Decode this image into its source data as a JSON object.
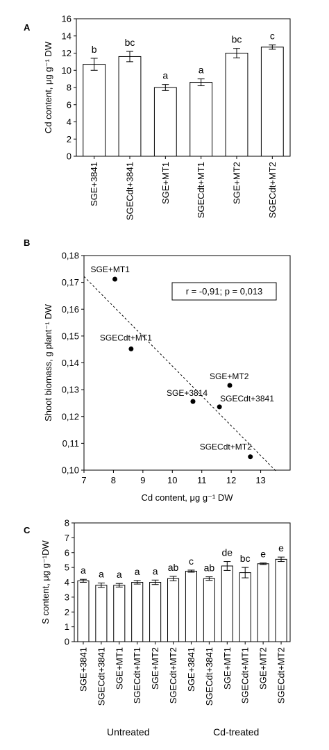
{
  "chart_data": [
    {
      "panel_label": "A",
      "type": "bar",
      "ylabel": "Cd content, μg g⁻¹ DW",
      "ylim": [
        0,
        16
      ],
      "yticks": [
        0,
        2,
        4,
        6,
        8,
        10,
        12,
        14,
        16
      ],
      "categories": [
        "SGE+3841",
        "SGECdt+3841",
        "SGE+MT1",
        "SGECdt+MT1",
        "SGE+MT2",
        "SGECdt+MT2"
      ],
      "values": [
        10.7,
        11.6,
        8.0,
        8.6,
        12.0,
        12.7
      ],
      "errors": [
        0.7,
        0.6,
        0.35,
        0.4,
        0.55,
        0.25
      ],
      "letters": [
        "b",
        "bc",
        "a",
        "a",
        "bc",
        "c"
      ],
      "grid": false
    },
    {
      "panel_label": "B",
      "type": "scatter",
      "xlabel": "Cd content, μg g⁻¹ DW",
      "ylabel": "Shoot biomass, g plant⁻¹ DW",
      "xlim": [
        7,
        14
      ],
      "ylim": [
        0.1,
        0.18
      ],
      "xticks": [
        7,
        8,
        9,
        10,
        11,
        12,
        13
      ],
      "yticks": [
        "0,10",
        "0,11",
        "0,12",
        "0,13",
        "0,14",
        "0,15",
        "0,16",
        "0,17",
        "0,18"
      ],
      "points": [
        {
          "label": "SGE+MT1",
          "x": 8.05,
          "y": 0.1712
        },
        {
          "label": "SGECdt+MT1",
          "x": 8.6,
          "y": 0.1452
        },
        {
          "label": "SGE+3814",
          "x": 10.7,
          "y": 0.1256
        },
        {
          "label": "SGE+MT2",
          "x": 11.95,
          "y": 0.1316
        },
        {
          "label": "SGECdt+3841",
          "x": 11.6,
          "y": 0.1236
        },
        {
          "label": "SGECdt+MT2",
          "x": 12.65,
          "y": 0.105
        }
      ],
      "trendline": {
        "x1": 7,
        "y1": 0.1722,
        "x2": 13.55,
        "y2": 0.0993
      },
      "annotation": "r = -0,91; p = 0,013",
      "grid": false
    },
    {
      "panel_label": "C",
      "type": "bar",
      "ylabel": "S content, μg g⁻¹DW",
      "ylim": [
        0,
        8
      ],
      "yticks": [
        0,
        1,
        2,
        3,
        4,
        5,
        6,
        7,
        8
      ],
      "categories": [
        "SGE+3841",
        "SGECdt+3841",
        "SGE+MT1",
        "SGECdt+MT1",
        "SGE+MT2",
        "SGECdt+MT2",
        "SGE+3841",
        "SGECdt+3841",
        "SGE+MT1",
        "SGECdt+MT1",
        "SGE+MT2",
        "SGECdt+MT2"
      ],
      "values": [
        4.1,
        3.8,
        3.8,
        4.0,
        4.0,
        4.25,
        4.75,
        4.25,
        5.1,
        4.65,
        5.25,
        5.55
      ],
      "errors": [
        0.1,
        0.15,
        0.12,
        0.12,
        0.15,
        0.15,
        0.07,
        0.12,
        0.3,
        0.35,
        0.05,
        0.15
      ],
      "letters": [
        "a",
        "a",
        "a",
        "a",
        "a",
        "ab",
        "c",
        "ab",
        "de",
        "bc",
        "e",
        "e"
      ],
      "groups": [
        {
          "label": "Untreated",
          "start": 0,
          "end": 5
        },
        {
          "label": "Cd-treated",
          "start": 6,
          "end": 11
        }
      ],
      "grid": false
    }
  ]
}
